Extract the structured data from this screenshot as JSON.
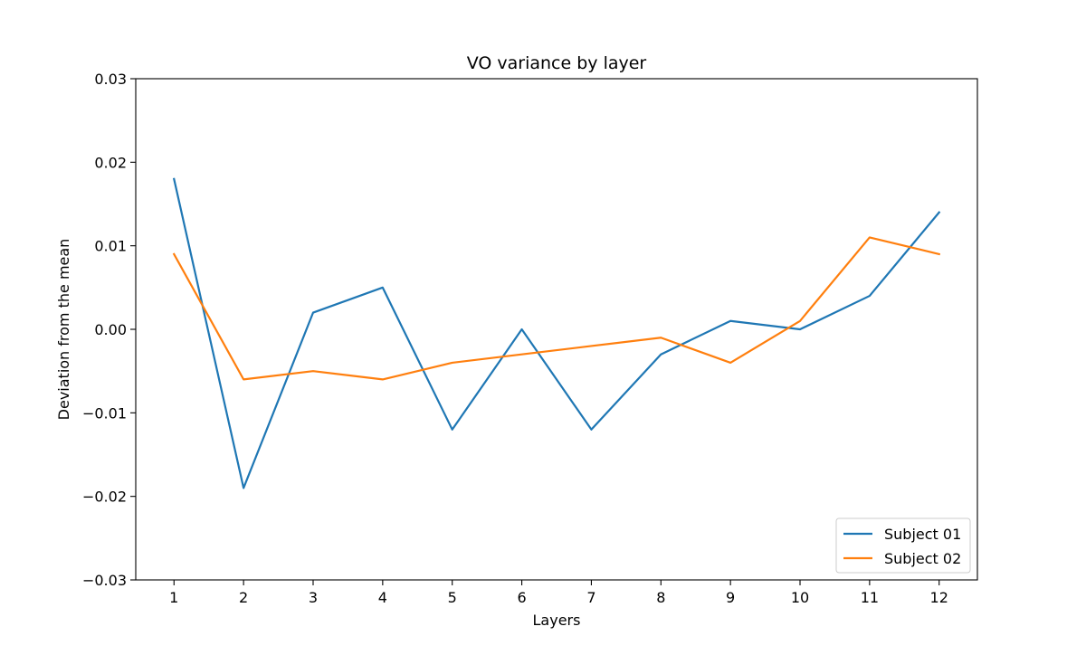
{
  "chart_data": {
    "type": "line",
    "title": "VO variance by layer",
    "xlabel": "Layers",
    "ylabel": "Deviation from the mean",
    "x": [
      1,
      2,
      3,
      4,
      5,
      6,
      7,
      8,
      9,
      10,
      11,
      12
    ],
    "xlim": [
      0.45,
      12.55
    ],
    "ylim": [
      -0.03,
      0.03
    ],
    "xticks": [
      "1",
      "2",
      "3",
      "4",
      "5",
      "6",
      "7",
      "8",
      "9",
      "10",
      "11",
      "12"
    ],
    "yticks": [
      -0.03,
      -0.02,
      -0.01,
      0.0,
      0.01,
      0.02,
      0.03
    ],
    "ytick_labels": [
      "−0.03",
      "−0.02",
      "−0.01",
      "0.00",
      "0.01",
      "0.02",
      "0.03"
    ],
    "grid": false,
    "legend_position": "lower-right",
    "series": [
      {
        "name": "Subject 01",
        "color": "#1f77b4",
        "values": [
          0.018,
          -0.019,
          0.002,
          0.005,
          -0.012,
          0.0,
          -0.012,
          -0.003,
          0.001,
          0.0,
          0.004,
          0.014
        ]
      },
      {
        "name": "Subject 02",
        "color": "#ff7f0e",
        "values": [
          0.009,
          -0.006,
          -0.005,
          -0.006,
          -0.004,
          -0.003,
          -0.002,
          -0.001,
          -0.004,
          0.001,
          0.011,
          0.009
        ]
      }
    ]
  }
}
